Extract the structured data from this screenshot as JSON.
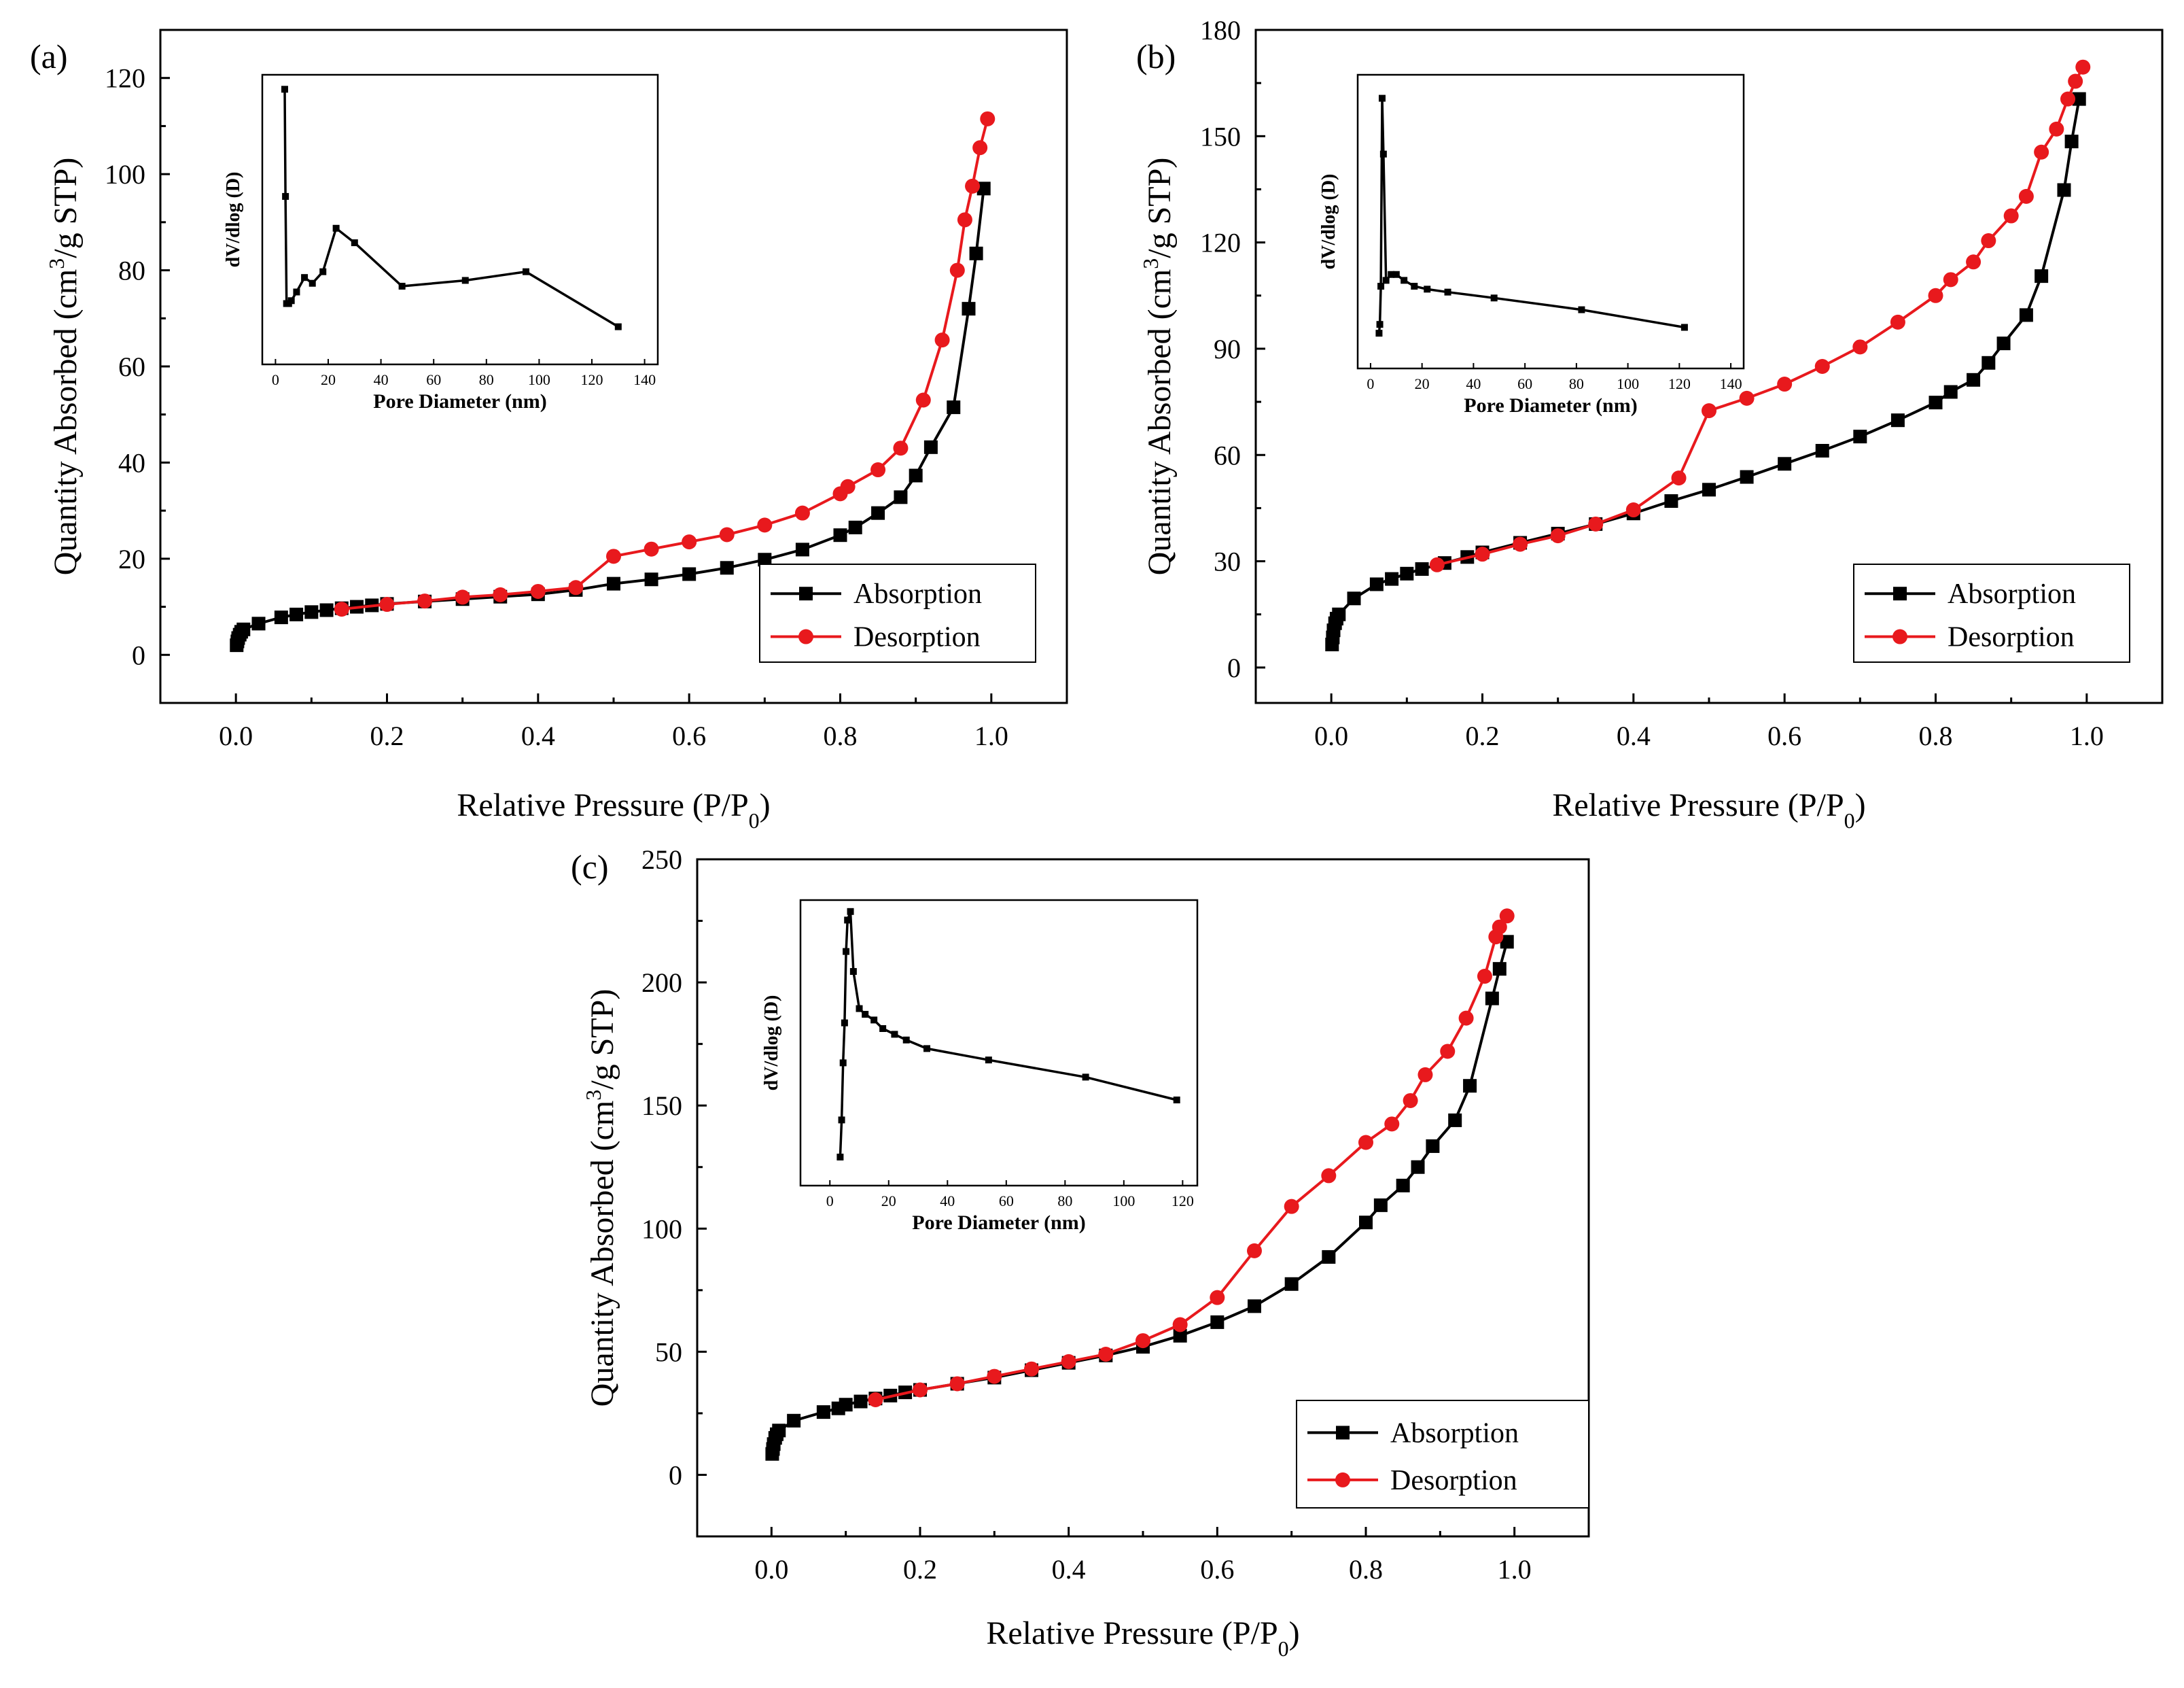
{
  "chart_data": [
    {
      "type": "line",
      "panel_label": "(a)",
      "xlabel": "Relative Pressure (P/P",
      "xlabel_sub": "0",
      "xlabel_close": ")",
      "ylabel": "Quantity Absorbed (cm",
      "ylabel_sup": "3",
      "ylabel_tail": "/g STP)",
      "xlim": [
        -0.1,
        1.1
      ],
      "ylim": [
        -10,
        130
      ],
      "xticks": [
        "0.0",
        "0.2",
        "0.4",
        "0.6",
        "0.8",
        "1.0"
      ],
      "yticks": [
        "0",
        "20",
        "40",
        "60",
        "80",
        "100",
        "120"
      ],
      "legend": [
        "Absorption",
        "Desorption"
      ],
      "series": [
        {
          "name": "Absorption",
          "color": "#000000",
          "marker": "square",
          "x": [
            0.001,
            0.002,
            0.003,
            0.005,
            0.007,
            0.01,
            0.03,
            0.06,
            0.08,
            0.1,
            0.12,
            0.14,
            0.16,
            0.18,
            0.2,
            0.25,
            0.3,
            0.35,
            0.4,
            0.45,
            0.5,
            0.55,
            0.6,
            0.65,
            0.7,
            0.75,
            0.8,
            0.82,
            0.85,
            0.88,
            0.9,
            0.92,
            0.95,
            0.97,
            0.98,
            0.99
          ],
          "y": [
            2.0,
            2.8,
            3.5,
            4.2,
            4.8,
            5.3,
            6.5,
            7.8,
            8.4,
            8.9,
            9.3,
            9.7,
            10.0,
            10.3,
            10.6,
            11.1,
            11.6,
            12.1,
            12.6,
            13.5,
            14.8,
            15.7,
            16.8,
            18.1,
            19.8,
            21.9,
            24.9,
            26.5,
            29.5,
            32.8,
            37.3,
            43.2,
            51.5,
            72.0,
            83.5,
            97.0
          ]
        },
        {
          "name": "Desorption",
          "color": "#e8191d",
          "marker": "circle",
          "x": [
            0.995,
            0.985,
            0.975,
            0.965,
            0.955,
            0.935,
            0.91,
            0.88,
            0.85,
            0.81,
            0.8,
            0.75,
            0.7,
            0.65,
            0.6,
            0.55,
            0.5,
            0.45,
            0.4,
            0.35,
            0.3,
            0.25,
            0.2,
            0.14
          ],
          "y": [
            111.5,
            105.5,
            97.5,
            90.5,
            80.0,
            65.5,
            53.0,
            43.0,
            38.5,
            35.0,
            33.5,
            29.5,
            27.0,
            25.0,
            23.5,
            22.0,
            20.5,
            14.0,
            13.2,
            12.5,
            12.0,
            11.2,
            10.5,
            9.5
          ]
        }
      ],
      "inset": {
        "type": "line",
        "xlabel": "Pore Diameter (nm)",
        "ylabel": "dV/dlog (D)",
        "xlim": [
          -5,
          145
        ],
        "ylim": [
          0,
          100
        ],
        "xticks": [
          "0",
          "20",
          "40",
          "60",
          "80",
          "100",
          "120",
          "140"
        ],
        "x": [
          3.5,
          3.8,
          4.2,
          5,
          6,
          8,
          11,
          14,
          18,
          23,
          30,
          48,
          72,
          95,
          130
        ],
        "y": [
          95,
          58,
          21,
          21,
          22,
          25,
          30,
          28,
          32,
          47,
          42,
          27,
          29,
          32,
          13
        ]
      }
    },
    {
      "type": "line",
      "panel_label": "(b)",
      "xlabel": "Relative Pressure (P/P",
      "xlabel_sub": "0",
      "xlabel_close": ")",
      "ylabel": "Quantity Absorbed (cm",
      "ylabel_sup": "3",
      "ylabel_tail": "/g STP)",
      "xlim": [
        -0.1,
        1.1
      ],
      "ylim": [
        -10,
        180
      ],
      "xticks": [
        "0.0",
        "0.2",
        "0.4",
        "0.6",
        "0.8",
        "1.0"
      ],
      "yticks": [
        "0",
        "30",
        "60",
        "90",
        "120",
        "150",
        "180"
      ],
      "legend": [
        "Absorption",
        "Desorption"
      ],
      "series": [
        {
          "name": "Absorption",
          "color": "#000000",
          "marker": "square",
          "x": [
            0.001,
            0.002,
            0.003,
            0.005,
            0.007,
            0.01,
            0.03,
            0.06,
            0.08,
            0.1,
            0.12,
            0.15,
            0.18,
            0.2,
            0.25,
            0.3,
            0.35,
            0.4,
            0.45,
            0.5,
            0.55,
            0.6,
            0.65,
            0.7,
            0.75,
            0.8,
            0.82,
            0.85,
            0.87,
            0.89,
            0.92,
            0.94,
            0.97,
            0.98,
            0.99
          ],
          "y": [
            6.5,
            8.5,
            10.5,
            12.5,
            13.8,
            15.0,
            19.5,
            23.5,
            25.0,
            26.5,
            27.8,
            29.5,
            31.2,
            32.5,
            35.2,
            37.8,
            40.5,
            43.5,
            47.0,
            50.2,
            53.8,
            57.5,
            61.2,
            65.2,
            69.8,
            74.8,
            77.8,
            81.2,
            86.0,
            91.5,
            99.5,
            110.5,
            134.8,
            148.5,
            160.5
          ]
        },
        {
          "name": "Desorption",
          "color": "#e8191d",
          "marker": "circle",
          "x": [
            0.995,
            0.985,
            0.975,
            0.96,
            0.94,
            0.92,
            0.9,
            0.87,
            0.85,
            0.82,
            0.8,
            0.75,
            0.7,
            0.65,
            0.6,
            0.55,
            0.5,
            0.46,
            0.4,
            0.35,
            0.3,
            0.25,
            0.2,
            0.14
          ],
          "y": [
            169.5,
            165.5,
            160.5,
            152.0,
            145.5,
            133.0,
            127.5,
            120.5,
            114.5,
            109.5,
            105.0,
            97.5,
            90.5,
            85.0,
            80.0,
            76.0,
            72.5,
            53.5,
            44.5,
            40.5,
            37.2,
            34.8,
            32.0,
            29.0
          ]
        }
      ],
      "inset": {
        "type": "line",
        "xlabel": "Pore Diameter (nm)",
        "ylabel": "dV/dlog (D)",
        "xlim": [
          -5,
          145
        ],
        "ylim": [
          0,
          100
        ],
        "xticks": [
          "0",
          "20",
          "40",
          "60",
          "80",
          "100",
          "120",
          "140"
        ],
        "x": [
          3.3,
          3.6,
          4.0,
          4.5,
          5.0,
          6,
          8,
          10,
          13,
          17,
          22,
          30,
          48,
          82,
          122
        ],
        "y": [
          12,
          15,
          28,
          92,
          73,
          30,
          32,
          32,
          30,
          28,
          27,
          26,
          24,
          20,
          14
        ]
      }
    },
    {
      "type": "line",
      "panel_label": "(c)",
      "xlabel": "Relative Pressure (P/P",
      "xlabel_sub": "0",
      "xlabel_close": ")",
      "ylabel": "Quantity Absorbed (cm",
      "ylabel_sup": "3",
      "ylabel_tail": "/g STP)",
      "xlim": [
        -0.1,
        1.1
      ],
      "ylim": [
        -25,
        250
      ],
      "xticks": [
        "0.0",
        "0.2",
        "0.4",
        "0.6",
        "0.8",
        "1.0"
      ],
      "yticks": [
        "0",
        "50",
        "100",
        "150",
        "200",
        "250"
      ],
      "legend": [
        "Absorption",
        "Desorption"
      ],
      "series": [
        {
          "name": "Absorption",
          "color": "#000000",
          "marker": "square",
          "x": [
            0.001,
            0.002,
            0.003,
            0.005,
            0.007,
            0.01,
            0.03,
            0.07,
            0.09,
            0.1,
            0.12,
            0.14,
            0.16,
            0.18,
            0.2,
            0.25,
            0.3,
            0.35,
            0.4,
            0.45,
            0.5,
            0.55,
            0.6,
            0.65,
            0.7,
            0.75,
            0.8,
            0.82,
            0.85,
            0.87,
            0.89,
            0.92,
            0.94,
            0.97,
            0.98,
            0.99
          ],
          "y": [
            8.5,
            10.5,
            12.5,
            15.0,
            16.5,
            18.0,
            22.0,
            25.5,
            27.0,
            28.5,
            29.8,
            31.0,
            32.2,
            33.5,
            34.5,
            37.0,
            39.5,
            42.5,
            45.5,
            48.5,
            52.0,
            56.5,
            62.0,
            68.5,
            77.5,
            88.5,
            102.5,
            109.5,
            117.5,
            125.0,
            133.5,
            144.0,
            158.0,
            193.5,
            205.5,
            216.5
          ]
        },
        {
          "name": "Desorption",
          "color": "#e8191d",
          "marker": "circle",
          "x": [
            0.99,
            0.98,
            0.975,
            0.96,
            0.935,
            0.91,
            0.88,
            0.86,
            0.835,
            0.8,
            0.75,
            0.7,
            0.65,
            0.6,
            0.55,
            0.5,
            0.45,
            0.4,
            0.35,
            0.3,
            0.25,
            0.2,
            0.14
          ],
          "y": [
            227.0,
            222.5,
            218.5,
            202.5,
            185.5,
            172.0,
            162.5,
            152.0,
            142.5,
            135.0,
            121.5,
            109.0,
            91.0,
            72.0,
            61.0,
            54.5,
            49.0,
            46.0,
            43.0,
            40.0,
            37.0,
            34.5,
            30.5
          ]
        }
      ],
      "inset": {
        "type": "line",
        "xlabel": "Pore Diameter (nm)",
        "ylabel": "dV/dlog (D)",
        "xlim": [
          -10,
          125
        ],
        "ylim": [
          0,
          100
        ],
        "xticks": [
          "0",
          "20",
          "40",
          "60",
          "80",
          "100",
          "120"
        ],
        "x": [
          3.5,
          4.0,
          4.5,
          5.0,
          5.5,
          6.0,
          7.0,
          8,
          10,
          12,
          15,
          18,
          22,
          26,
          33,
          54,
          87,
          118
        ],
        "y": [
          10,
          23,
          43,
          57,
          82,
          93,
          96,
          75,
          62,
          60,
          58,
          55,
          53,
          51,
          48,
          44,
          38,
          30
        ]
      }
    }
  ]
}
